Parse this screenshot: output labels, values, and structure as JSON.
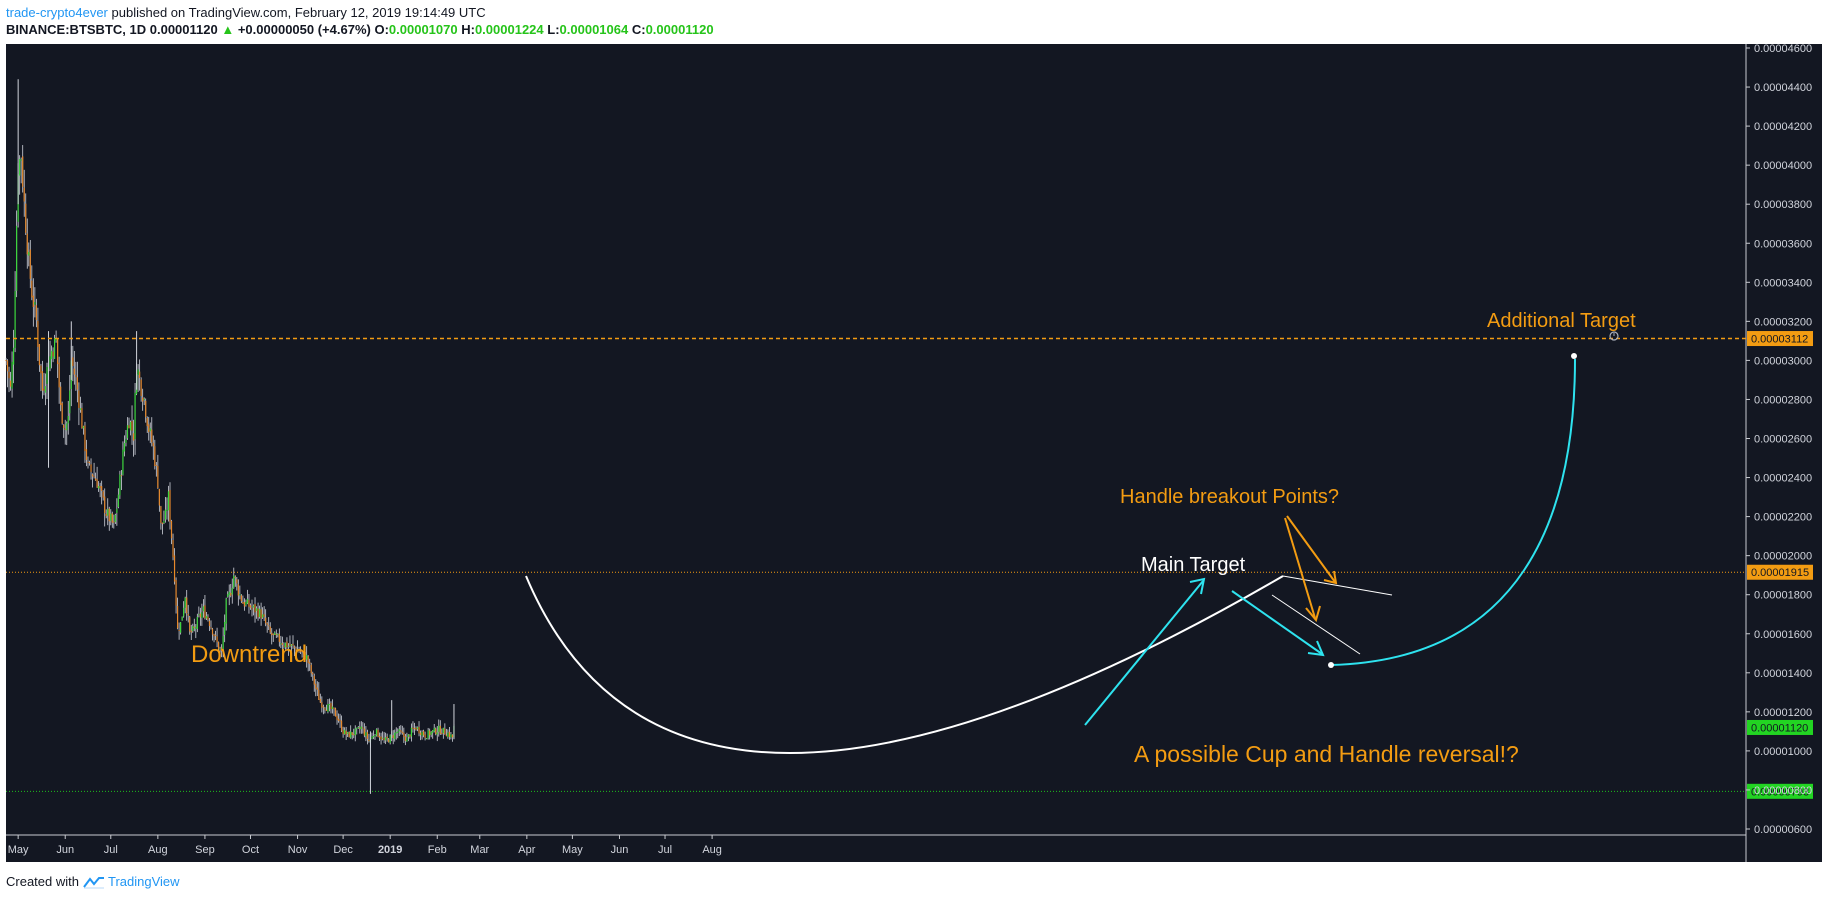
{
  "header": {
    "author": "trade-crypto4ever",
    "published": "published on TradingView.com, February 12, 2019 19:14:49 UTC",
    "symbol": "BINANCE:BTSBTC, 1D",
    "last": "0.00001120",
    "change_arrow": "▲",
    "change": "+0.00000050 (+4.67%)",
    "o_label": "O:",
    "o_value": "0.00001070",
    "h_label": "H:",
    "h_value": "0.00001224",
    "l_label": "L:",
    "l_value": "0.00001064",
    "c_label": "C:",
    "c_value": "0.00001120"
  },
  "footer": {
    "created_with": "Created with",
    "brand": "TradingView",
    "logo_icon": "tradingview-logo-icon"
  },
  "colors": {
    "background": "#131722",
    "up_candle": "#3dd73d",
    "down_candle": "#e6882c",
    "annotation_orange": "#f39c12",
    "cyan_arrow": "#2ee3ef",
    "green_line": "#1ebd1e",
    "white": "#ffffff"
  },
  "chart_data": {
    "type": "candlestick",
    "symbol": "BINANCE:BTSBTC",
    "interval": "1D",
    "ylim": [
      6e-06,
      4.6e-05
    ],
    "y_ticks": [
      "0.00000600",
      "0.00000800",
      "0.00001000",
      "0.00001200",
      "0.00001400",
      "0.00001600",
      "0.00001800",
      "0.00002000",
      "0.00002200",
      "0.00002400",
      "0.00002600",
      "0.00002800",
      "0.00003000",
      "0.00003200",
      "0.00003400",
      "0.00003600",
      "0.00003800",
      "0.00004000",
      "0.00004200",
      "0.00004400",
      "0.00004600"
    ],
    "x_ticks": [
      "May",
      "Jun",
      "Jul",
      "Aug",
      "Sep",
      "Oct",
      "Nov",
      "Dec",
      "2019",
      "Feb",
      "Mar",
      "Apr",
      "May",
      "Jun",
      "Jul",
      "Aug"
    ],
    "x_start": "2018-04-23",
    "x_end": "2019-09-01",
    "series": [
      {
        "style": "approximate daily closes",
        "points": [
          [
            "2018-04-23",
            3e-05
          ],
          [
            "2018-04-26",
            2.85e-05
          ],
          [
            "2018-04-28",
            3.1e-05
          ],
          [
            "2018-05-01",
            4e-05
          ],
          [
            "2018-05-03",
            4.05e-05
          ],
          [
            "2018-05-05",
            3.8e-05
          ],
          [
            "2018-05-08",
            3.5e-05
          ],
          [
            "2018-05-10",
            3.35e-05
          ],
          [
            "2018-05-13",
            3.2e-05
          ],
          [
            "2018-05-15",
            3e-05
          ],
          [
            "2018-05-17",
            2.85e-05
          ],
          [
            "2018-05-20",
            2.95e-05
          ],
          [
            "2018-05-23",
            3.05e-05
          ],
          [
            "2018-05-26",
            3.1e-05
          ],
          [
            "2018-05-29",
            2.75e-05
          ],
          [
            "2018-06-01",
            2.65e-05
          ],
          [
            "2018-06-03",
            2.7e-05
          ],
          [
            "2018-06-05",
            3e-05
          ],
          [
            "2018-06-08",
            2.9e-05
          ],
          [
            "2018-06-10",
            2.8e-05
          ],
          [
            "2018-06-13",
            2.62e-05
          ],
          [
            "2018-06-16",
            2.45e-05
          ],
          [
            "2018-06-19",
            2.42e-05
          ],
          [
            "2018-06-22",
            2.38e-05
          ],
          [
            "2018-06-25",
            2.3e-05
          ],
          [
            "2018-06-28",
            2.22e-05
          ],
          [
            "2018-07-01",
            2.18e-05
          ],
          [
            "2018-07-03",
            2.15e-05
          ],
          [
            "2018-07-05",
            2.25e-05
          ],
          [
            "2018-07-08",
            2.45e-05
          ],
          [
            "2018-07-10",
            2.58e-05
          ],
          [
            "2018-07-13",
            2.7e-05
          ],
          [
            "2018-07-16",
            2.62e-05
          ],
          [
            "2018-07-18",
            2.98e-05
          ],
          [
            "2018-07-20",
            2.9e-05
          ],
          [
            "2018-07-23",
            2.8e-05
          ],
          [
            "2018-07-26",
            2.65e-05
          ],
          [
            "2018-07-29",
            2.55e-05
          ],
          [
            "2018-08-01",
            2.38e-05
          ],
          [
            "2018-08-03",
            2.15e-05
          ],
          [
            "2018-08-06",
            2.2e-05
          ],
          [
            "2018-08-08",
            2.3e-05
          ],
          [
            "2018-08-10",
            2.1e-05
          ],
          [
            "2018-08-12",
            1.9e-05
          ],
          [
            "2018-08-14",
            1.62e-05
          ],
          [
            "2018-08-16",
            1.65e-05
          ],
          [
            "2018-08-19",
            1.8e-05
          ],
          [
            "2018-08-22",
            1.6e-05
          ],
          [
            "2018-08-25",
            1.62e-05
          ],
          [
            "2018-08-28",
            1.68e-05
          ],
          [
            "2018-08-31",
            1.72e-05
          ],
          [
            "2018-09-03",
            1.68e-05
          ],
          [
            "2018-09-06",
            1.62e-05
          ],
          [
            "2018-09-09",
            1.55e-05
          ],
          [
            "2018-09-12",
            1.5e-05
          ],
          [
            "2018-09-15",
            1.75e-05
          ],
          [
            "2018-09-18",
            1.82e-05
          ],
          [
            "2018-09-20",
            1.9e-05
          ],
          [
            "2018-09-23",
            1.82e-05
          ],
          [
            "2018-09-26",
            1.76e-05
          ],
          [
            "2018-09-29",
            1.75e-05
          ],
          [
            "2018-10-02",
            1.73e-05
          ],
          [
            "2018-10-05",
            1.72e-05
          ],
          [
            "2018-10-08",
            1.7e-05
          ],
          [
            "2018-10-11",
            1.65e-05
          ],
          [
            "2018-10-14",
            1.6e-05
          ],
          [
            "2018-10-17",
            1.58e-05
          ],
          [
            "2018-10-20",
            1.57e-05
          ],
          [
            "2018-10-23",
            1.55e-05
          ],
          [
            "2018-10-26",
            1.54e-05
          ],
          [
            "2018-10-29",
            1.53e-05
          ],
          [
            "2018-11-01",
            1.52e-05
          ],
          [
            "2018-11-04",
            1.5e-05
          ],
          [
            "2018-11-07",
            1.48e-05
          ],
          [
            "2018-11-10",
            1.4e-05
          ],
          [
            "2018-11-13",
            1.32e-05
          ],
          [
            "2018-11-16",
            1.25e-05
          ],
          [
            "2018-11-19",
            1.23e-05
          ],
          [
            "2018-11-22",
            1.22e-05
          ],
          [
            "2018-11-25",
            1.2e-05
          ],
          [
            "2018-11-28",
            1.16e-05
          ],
          [
            "2018-12-01",
            1.1e-05
          ],
          [
            "2018-12-04",
            1.08e-05
          ],
          [
            "2018-12-07",
            1.09e-05
          ],
          [
            "2018-12-10",
            1.1e-05
          ],
          [
            "2018-12-13",
            1.12e-05
          ],
          [
            "2018-12-16",
            1.08e-05
          ],
          [
            "2018-12-18",
            1.05e-05
          ],
          [
            "2018-12-20",
            1.07e-05
          ],
          [
            "2018-12-22",
            1.1e-05
          ],
          [
            "2018-12-25",
            1.08e-05
          ],
          [
            "2018-12-28",
            1.05e-05
          ],
          [
            "2018-12-31",
            1.06e-05
          ],
          [
            "2019-01-03",
            1.08e-05
          ],
          [
            "2019-01-06",
            1.1e-05
          ],
          [
            "2019-01-09",
            1.08e-05
          ],
          [
            "2019-01-12",
            1.06e-05
          ],
          [
            "2019-01-15",
            1.1e-05
          ],
          [
            "2019-01-18",
            1.12e-05
          ],
          [
            "2019-01-21",
            1.1e-05
          ],
          [
            "2019-01-24",
            1.08e-05
          ],
          [
            "2019-01-27",
            1.09e-05
          ],
          [
            "2019-01-30",
            1.1e-05
          ],
          [
            "2019-02-02",
            1.11e-05
          ],
          [
            "2019-02-05",
            1.1e-05
          ],
          [
            "2019-02-08",
            1.09e-05
          ],
          [
            "2019-02-11",
            1.07e-05
          ],
          [
            "2019-02-12",
            1.12e-05
          ]
        ]
      }
    ],
    "price_lines": [
      {
        "label": "0.00003112",
        "value": 3.112e-05,
        "style": "dashed"
      },
      {
        "label": "0.00001915",
        "value": 1.915e-05,
        "style": "dotted"
      },
      {
        "label": "0.00000793",
        "value": 7.93e-06,
        "style": "dotted"
      }
    ],
    "last_price_label": "0.00001120",
    "annotations": {
      "downtrend": "Downtrend",
      "additional_target": "Additional Target",
      "handle_breakout": "Handle breakout Points?",
      "main_target": "Main Target",
      "cup_handle": "A possible Cup and Handle reversal!?"
    }
  }
}
